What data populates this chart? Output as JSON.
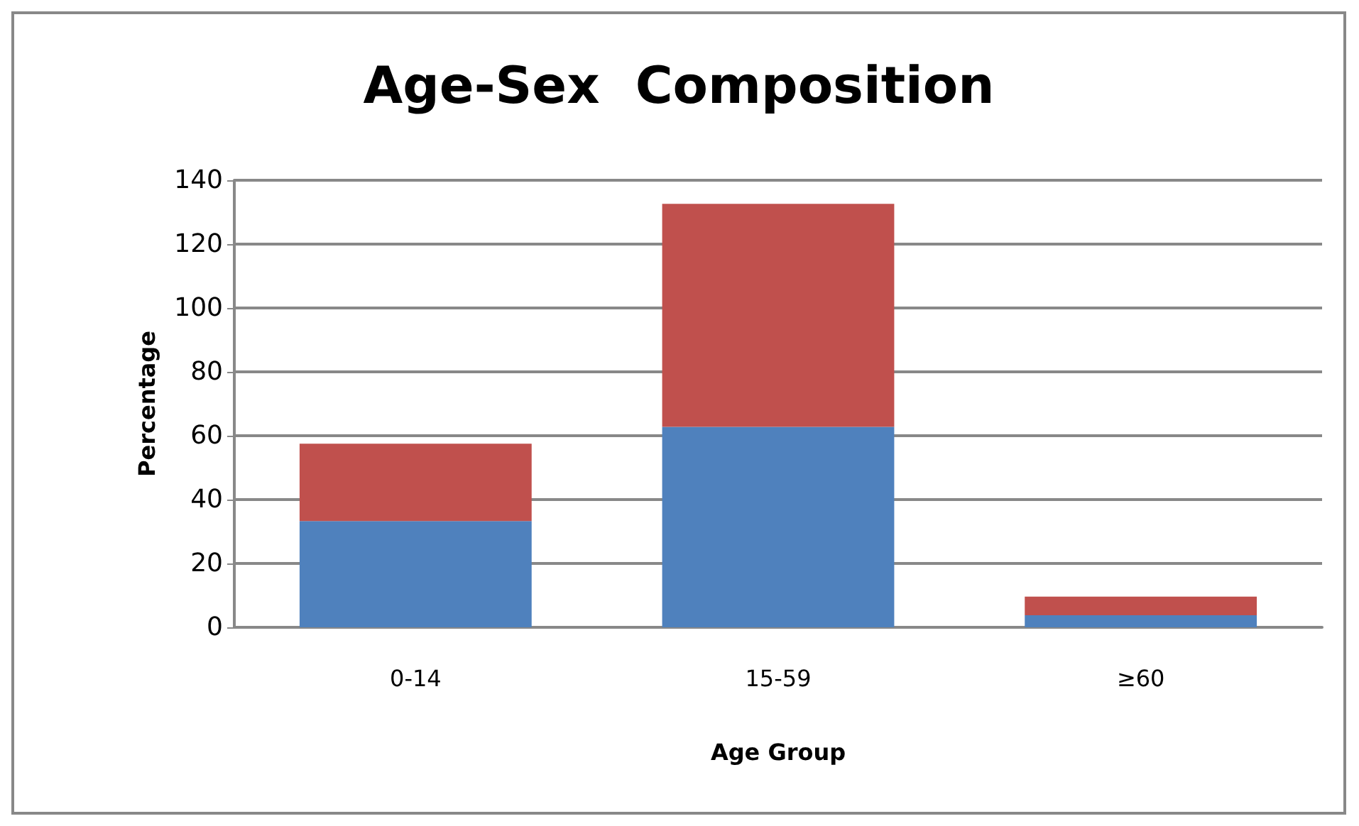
{
  "chart_data": {
    "type": "bar",
    "title": "Age-Sex  Composition",
    "xlabel": "Age Group",
    "ylabel": "Percentage",
    "categories": [
      "0-14",
      "15-59",
      "≥60"
    ],
    "stacked": true,
    "series": [
      {
        "color": "#4f81bd",
        "values": [
          33.3,
          62.8,
          3.8
        ]
      },
      {
        "color": "#c0504d",
        "values": [
          24.2,
          69.8,
          5.8
        ]
      }
    ],
    "ylim": [
      0,
      140
    ],
    "yticks": [
      0,
      20,
      40,
      60,
      80,
      100,
      120,
      140
    ],
    "grid": "y"
  }
}
